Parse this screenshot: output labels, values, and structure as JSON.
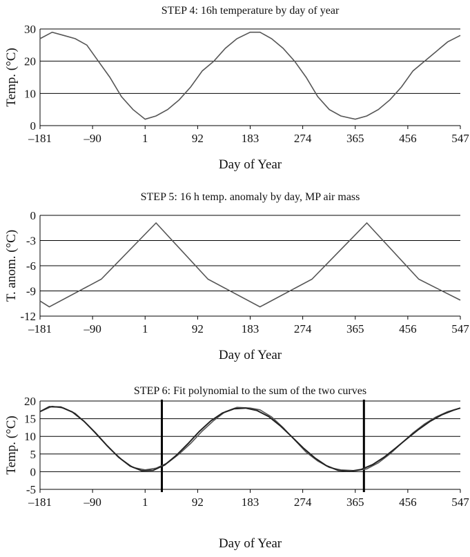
{
  "chart_data": [
    {
      "type": "line",
      "title": "STEP 4: 16h temperature by day of year",
      "xlabel": "Day of Year",
      "ylabel": "Temp. (°C)",
      "xlim": [
        -181,
        547
      ],
      "ylim": [
        0,
        30
      ],
      "x_ticks": [
        "–181",
        "–90",
        "1",
        "92",
        "183",
        "274",
        "365",
        "456",
        "547"
      ],
      "x_tick_values": [
        -181,
        -90,
        1,
        92,
        183,
        274,
        365,
        456,
        547
      ],
      "y_ticks": [
        "0",
        "10",
        "20",
        "30"
      ],
      "y_tick_values": [
        0,
        10,
        20,
        30
      ],
      "grid": "horizontal",
      "series": [
        {
          "x": [
            -181,
            -160,
            -140,
            -120,
            -100,
            -80,
            -60,
            -40,
            -20,
            1,
            20,
            40,
            60,
            80,
            100,
            120,
            140,
            160,
            183,
            200,
            220,
            240,
            260,
            280,
            300,
            320,
            340,
            365,
            385,
            405,
            425,
            445,
            465,
            485,
            505,
            525,
            547
          ],
          "y": [
            27,
            29,
            28,
            27,
            25,
            20,
            15,
            9,
            5,
            2,
            3,
            5,
            8,
            12,
            17,
            20,
            24,
            27,
            29,
            29,
            27,
            24,
            20,
            15,
            9,
            5,
            3,
            2,
            3,
            5,
            8,
            12,
            17,
            20,
            23,
            26,
            28
          ]
        }
      ]
    },
    {
      "type": "line",
      "title": "STEP 5: 16 h temp. anomaly by day, MP air mass",
      "xlabel": "Day of Year",
      "ylabel": "T. anom. (°C)",
      "xlim": [
        -181,
        547
      ],
      "ylim": [
        -12,
        0
      ],
      "x_ticks": [
        "–181",
        "–90",
        "1",
        "92",
        "183",
        "274",
        "365",
        "456",
        "547"
      ],
      "x_tick_values": [
        -181,
        -90,
        1,
        92,
        183,
        274,
        365,
        456,
        547
      ],
      "y_ticks": [
        "0",
        "-3",
        "-6",
        "-9",
        "-12"
      ],
      "y_tick_values": [
        0,
        -3,
        -6,
        -9,
        -12
      ],
      "grid": "horizontal",
      "series": [
        {
          "x": [
            -181,
            -165,
            -75,
            20,
            110,
            200,
            290,
            385,
            475,
            547
          ],
          "y": [
            -10.2,
            -10.9,
            -7.6,
            -0.9,
            -7.6,
            -10.9,
            -7.6,
            -0.9,
            -7.6,
            -10.1
          ]
        }
      ]
    },
    {
      "type": "line",
      "title": "STEP 6: Fit polynomial to the sum of the two curves",
      "xlabel": "Day of Year",
      "ylabel": "Temp. (°C)",
      "xlim": [
        -181,
        547
      ],
      "ylim": [
        -5,
        20
      ],
      "x_ticks": [
        "–181",
        "–90",
        "1",
        "92",
        "183",
        "274",
        "365",
        "456",
        "547"
      ],
      "x_tick_values": [
        -181,
        -90,
        1,
        92,
        183,
        274,
        365,
        456,
        547
      ],
      "y_ticks": [
        "20",
        "15",
        "10",
        "5",
        "0",
        "-5"
      ],
      "y_tick_values": [
        20,
        15,
        10,
        5,
        0,
        -5
      ],
      "grid": "horizontal",
      "vertical_markers": [
        30,
        380
      ],
      "series": [
        {
          "x": [
            -181,
            -160,
            -140,
            -120,
            -100,
            -80,
            -60,
            -40,
            -20,
            1,
            20,
            40,
            60,
            80,
            100,
            120,
            140,
            160,
            183,
            200,
            220,
            240,
            260,
            280,
            300,
            320,
            340,
            365,
            385,
            405,
            425,
            445,
            465,
            485,
            505,
            525,
            547
          ],
          "y": [
            17,
            18.5,
            18,
            16.5,
            13.5,
            10,
            6.5,
            3.5,
            1.2,
            0.5,
            1,
            2.5,
            5,
            8,
            11.5,
            14.5,
            17,
            18.2,
            18,
            17.5,
            15.5,
            12.5,
            9,
            5.5,
            3,
            1.2,
            0.5,
            0.3,
            0.8,
            2.5,
            5,
            8,
            11,
            13.5,
            15.5,
            17,
            18
          ]
        },
        {
          "x": [
            -181,
            -165,
            -145,
            -125,
            -105,
            -85,
            -65,
            -45,
            -25,
            -5,
            15,
            35,
            55,
            75,
            95,
            115,
            135,
            155,
            175,
            195,
            215,
            235,
            255,
            275,
            295,
            315,
            335,
            355,
            375,
            395,
            415,
            435,
            455,
            475,
            495,
            515,
            535,
            547
          ],
          "y": [
            17,
            18.4,
            18.3,
            16.9,
            14.3,
            11,
            7.4,
            4.1,
            1.6,
            0.3,
            0.4,
            1.9,
            4.6,
            7.9,
            11.4,
            14.4,
            16.6,
            17.8,
            18,
            17.3,
            15.6,
            13,
            9.9,
            6.7,
            3.9,
            1.7,
            0.4,
            0.1,
            0.6,
            2,
            4.1,
            6.7,
            9.4,
            12,
            14.3,
            16.1,
            17.4,
            18
          ]
        }
      ]
    }
  ]
}
